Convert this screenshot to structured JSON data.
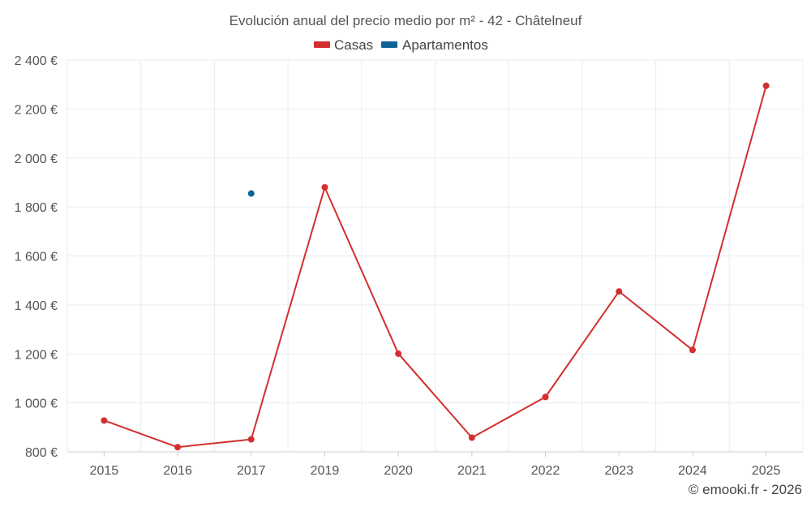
{
  "chart_data": {
    "type": "line",
    "title": "Evolución anual del precio medio por m² - 42 - Châtelneuf",
    "categories": [
      "2015",
      "2016",
      "2017",
      "2019",
      "2020",
      "2021",
      "2022",
      "2023",
      "2024",
      "2025"
    ],
    "series": [
      {
        "name": "Casas",
        "color": "#d32f2f",
        "values": [
          928,
          819,
          851,
          1880,
          1201,
          858,
          1024,
          1455,
          1216,
          2295
        ]
      },
      {
        "name": "Apartamentos",
        "color": "#0d6397",
        "values": [
          null,
          null,
          1855,
          null,
          null,
          null,
          null,
          null,
          null,
          null
        ]
      }
    ],
    "xlabel": "",
    "ylabel": "",
    "ylim": [
      800,
      2400
    ],
    "yticks": [
      800,
      1000,
      1200,
      1400,
      1600,
      1800,
      2000,
      2200,
      2400
    ],
    "ytick_labels": [
      "800 €",
      "1 000 €",
      "1 200 €",
      "1 400 €",
      "1 600 €",
      "1 800 €",
      "2 000 €",
      "2 200 €",
      "2 400 €"
    ],
    "grid": true,
    "legend_position": "top-center"
  },
  "credit": "© emooki.fr - 2026"
}
